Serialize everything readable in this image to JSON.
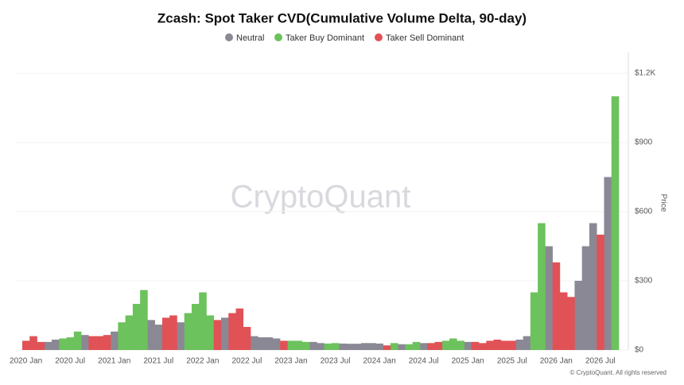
{
  "chart_data": {
    "type": "bar",
    "title": "Zcash: Spot Taker CVD(Cumulative Volume Delta, 90-day)",
    "y_axis_label": "Price",
    "watermark": "CryptoQuant",
    "footer": "© CryptoQuant. All rights reserved",
    "categories": [
      "2020 Jan",
      null,
      null,
      null,
      null,
      null,
      "2020 Jul",
      null,
      null,
      null,
      null,
      null,
      "2021 Jan",
      null,
      null,
      null,
      null,
      null,
      "2021 Jul",
      null,
      null,
      null,
      null,
      null,
      "2022 Jan",
      null,
      null,
      null,
      null,
      null,
      "2022 Jul",
      null,
      null,
      null,
      null,
      null,
      "2023 Jan",
      null,
      null,
      null,
      null,
      null,
      "2023 Jul",
      null,
      null,
      null,
      null,
      null,
      "2024 Jan",
      null,
      null,
      null,
      null,
      null,
      "2024 Jul",
      null,
      null,
      null,
      null,
      null,
      "2025 Jan",
      null,
      null,
      null,
      null,
      null,
      "2025 Jul",
      null,
      null,
      null,
      null,
      null,
      "2026 Jan",
      null,
      null,
      null,
      null,
      null,
      "2026 Jul",
      null,
      null
    ],
    "series": [
      {
        "name": "Neutral",
        "color": "#8a8894",
        "values": [
          null,
          null,
          null,
          35,
          45,
          null,
          null,
          null,
          65,
          null,
          null,
          null,
          80,
          null,
          null,
          null,
          null,
          130,
          110,
          null,
          null,
          120,
          null,
          null,
          null,
          null,
          null,
          140,
          null,
          null,
          null,
          60,
          55,
          55,
          50,
          null,
          null,
          null,
          null,
          35,
          30,
          null,
          null,
          28,
          27,
          27,
          30,
          30,
          28,
          null,
          null,
          25,
          null,
          null,
          30,
          null,
          null,
          null,
          null,
          null,
          35,
          null,
          null,
          null,
          null,
          null,
          null,
          45,
          60,
          null,
          null,
          450,
          null,
          null,
          null,
          300,
          450,
          550,
          null,
          750,
          null
        ]
      },
      {
        "name": "Taker Buy Dominant",
        "color": "#6cc25c",
        "values": [
          null,
          null,
          null,
          null,
          null,
          50,
          55,
          80,
          null,
          null,
          null,
          null,
          null,
          120,
          150,
          200,
          260,
          null,
          null,
          null,
          null,
          null,
          160,
          200,
          250,
          150,
          null,
          null,
          null,
          null,
          null,
          null,
          null,
          null,
          null,
          null,
          40,
          40,
          35,
          null,
          null,
          28,
          30,
          null,
          null,
          null,
          null,
          null,
          null,
          null,
          30,
          null,
          25,
          35,
          null,
          null,
          null,
          40,
          50,
          40,
          null,
          null,
          null,
          null,
          null,
          null,
          null,
          null,
          null,
          250,
          550,
          null,
          null,
          null,
          null,
          null,
          null,
          null,
          null,
          null,
          1100
        ]
      },
      {
        "name": "Taker Sell Dominant",
        "color": "#e05256",
        "values": [
          40,
          60,
          35,
          null,
          null,
          null,
          null,
          null,
          null,
          60,
          60,
          65,
          null,
          null,
          null,
          null,
          null,
          null,
          null,
          140,
          150,
          null,
          null,
          null,
          null,
          null,
          130,
          null,
          160,
          180,
          100,
          null,
          null,
          null,
          null,
          40,
          null,
          null,
          null,
          null,
          null,
          null,
          null,
          null,
          null,
          null,
          null,
          null,
          null,
          20,
          null,
          null,
          null,
          null,
          null,
          30,
          35,
          null,
          null,
          null,
          null,
          35,
          30,
          40,
          45,
          40,
          40,
          null,
          null,
          null,
          null,
          null,
          380,
          250,
          230,
          null,
          null,
          null,
          500,
          null,
          null
        ]
      }
    ],
    "ylim": [
      0,
      1290
    ],
    "yticks": [
      {
        "value": 0,
        "label": "$0"
      },
      {
        "value": 300,
        "label": "$300"
      },
      {
        "value": 600,
        "label": "$600"
      },
      {
        "value": 900,
        "label": "$900"
      },
      {
        "value": 1200,
        "label": "$1.2K"
      }
    ],
    "grid": true
  }
}
